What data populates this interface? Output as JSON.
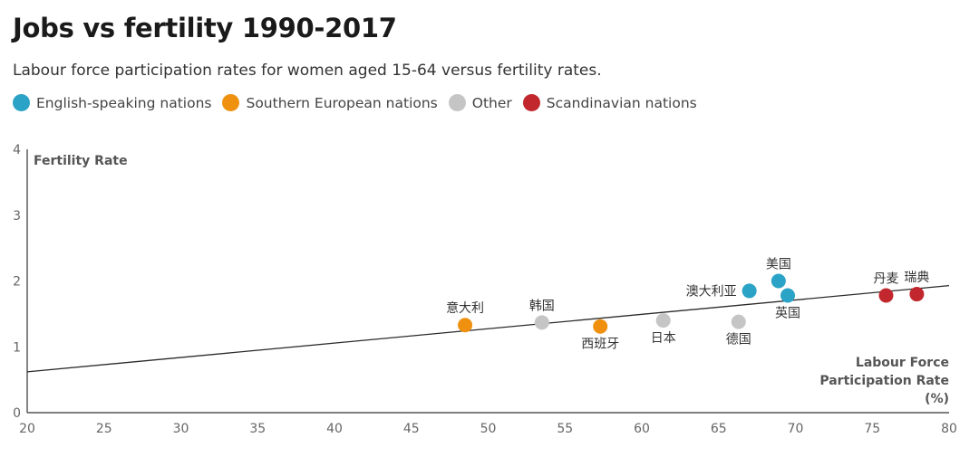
{
  "chart_data": {
    "type": "scatter",
    "title": "Jobs vs fertility 1990-2017",
    "subtitle": "Labour force participation rates for women aged 15-64 versus fertility rates.",
    "ylabel": "Fertility Rate",
    "xlabel_lines": [
      "Labour Force",
      "Participation Rate",
      "(%)"
    ],
    "xlim": [
      20,
      80
    ],
    "ylim": [
      0,
      4
    ],
    "xticks": [
      "20",
      "25",
      "30",
      "35",
      "40",
      "45",
      "50",
      "55",
      "60",
      "65",
      "70",
      "75",
      "80"
    ],
    "yticks": [
      "0",
      "1",
      "2",
      "3",
      "4"
    ],
    "legend": [
      {
        "name": "English-speaking nations",
        "color": "#2aa3c6"
      },
      {
        "name": "Southern European nations",
        "color": "#f0900f"
      },
      {
        "name": "Other",
        "color": "#c5c5c5"
      },
      {
        "name": "Scandinavian nations",
        "color": "#c1272d"
      }
    ],
    "trendline": {
      "x": [
        20,
        80
      ],
      "y": [
        0.62,
        1.93
      ]
    },
    "points": [
      {
        "label": "意大利",
        "x": 48.5,
        "y": 1.33,
        "group": 1,
        "label_pos": "above"
      },
      {
        "label": "韩国",
        "x": 53.5,
        "y": 1.37,
        "group": 2,
        "label_pos": "above"
      },
      {
        "label": "西班牙",
        "x": 57.3,
        "y": 1.31,
        "group": 1,
        "label_pos": "below"
      },
      {
        "label": "日本",
        "x": 61.4,
        "y": 1.4,
        "group": 2,
        "label_pos": "below"
      },
      {
        "label": "德国",
        "x": 66.3,
        "y": 1.38,
        "group": 2,
        "label_pos": "below"
      },
      {
        "label": "澳大利亚",
        "x": 67.0,
        "y": 1.85,
        "group": 0,
        "label_pos": "left"
      },
      {
        "label": "美国",
        "x": 68.9,
        "y": 2.0,
        "group": 0,
        "label_pos": "above"
      },
      {
        "label": "英国",
        "x": 69.5,
        "y": 1.78,
        "group": 0,
        "label_pos": "below"
      },
      {
        "label": "丹麦",
        "x": 75.9,
        "y": 1.78,
        "group": 3,
        "label_pos": "above"
      },
      {
        "label": "瑞典",
        "x": 77.9,
        "y": 1.8,
        "group": 3,
        "label_pos": "above"
      }
    ]
  }
}
